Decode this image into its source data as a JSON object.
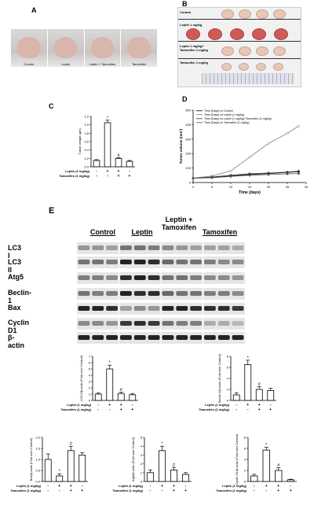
{
  "panels": {
    "A": "A",
    "B": "B",
    "C": "C",
    "D": "D",
    "E": "E"
  },
  "panel_a": {
    "captions": [
      "Control",
      "Leptin",
      "Leptin + Tamoxifen",
      "Tamoxifen"
    ]
  },
  "panel_b": {
    "rows": [
      "Control",
      "Leptin 1 mg/kg",
      "Leptin 1 mg/kg+ Tamoxifen 1 mg/kg",
      "Tamoxifen 1 mg/kg"
    ]
  },
  "treatment_labels": {
    "leptin": "Leptin (1 mg/kg)",
    "tamoxifen": "Tamoxifen (1 mg/kg)"
  },
  "treatment_signs": {
    "leptin": [
      "-",
      "+",
      "+",
      "-"
    ],
    "tamoxifen": [
      "-",
      "-",
      "+",
      "+"
    ]
  },
  "panel_e": {
    "groups": [
      "Control",
      "Leptin",
      "Leptin + Tamoxifen",
      "Tamoxifen"
    ],
    "rows": [
      "LC3 I",
      "LC3 II",
      "Atg5",
      "Beclin-1",
      "Bax",
      "Cyclin D1",
      "β-actin"
    ]
  },
  "chart_data": [
    {
      "type": "bar",
      "ylabel": "Tumor weight (gm)",
      "categories": [
        "1",
        "2",
        "3",
        "4"
      ],
      "values": [
        0.15,
        1.05,
        0.2,
        0.13
      ],
      "errors": [
        0.02,
        0.06,
        0.02,
        0.02
      ],
      "ylim": [
        0,
        1.2
      ],
      "yticks": [
        "0.0",
        "0.2",
        "0.4",
        "0.6",
        "0.8",
        "1.0",
        "1.2"
      ],
      "markers": [
        "",
        "*",
        "#",
        ""
      ]
    },
    {
      "type": "line",
      "xlabel": "Time (days)",
      "ylabel": "Tumor volume (mm³)",
      "x": [
        0,
        5,
        10,
        15,
        20,
        25,
        28
      ],
      "xticks": [
        "0",
        "5",
        "10",
        "15",
        "20",
        "25",
        "30"
      ],
      "yticks": [
        "0",
        "100",
        "200",
        "300",
        "400",
        "500"
      ],
      "ylim": [
        0,
        500
      ],
      "legend": [
        "Time (Days) vs Control",
        "Time (Days) vs Leptin (1 mg/kg)",
        "Time (Days) vs Leptin (1 mg/kg)+Tamoxifen (1 mg/kg)",
        "Time (Days) vs Tamoxifen (1 mg/kg)"
      ],
      "series": [
        {
          "values": [
            30,
            35,
            45,
            55,
            62,
            70,
            75
          ]
        },
        {
          "values": [
            30,
            45,
            80,
            175,
            270,
            340,
            390
          ]
        },
        {
          "values": [
            30,
            38,
            50,
            60,
            65,
            72,
            78
          ]
        },
        {
          "values": [
            30,
            33,
            42,
            50,
            55,
            60,
            62
          ]
        }
      ]
    },
    {
      "type": "bar",
      "ylabel": "LC3-II/β-actin (Fold over Control)",
      "categories": [
        "1",
        "2",
        "3",
        "4"
      ],
      "values": [
        1.0,
        5.0,
        1.1,
        0.9
      ],
      "errors": [
        0.2,
        0.6,
        0.2,
        0.2
      ],
      "ylim": [
        0,
        7
      ],
      "yticks": [
        "0",
        "1",
        "2",
        "3",
        "4",
        "5",
        "6",
        "7"
      ],
      "markers": [
        "",
        "*",
        "#",
        ""
      ]
    },
    {
      "type": "bar",
      "ylabel": "Beclin-1/β-actin (Fold over Control)",
      "categories": [
        "1",
        "2",
        "3",
        "4"
      ],
      "values": [
        1.0,
        6.5,
        2.0,
        1.8
      ],
      "errors": [
        0.4,
        0.8,
        0.5,
        0.4
      ],
      "ylim": [
        0,
        8
      ],
      "yticks": [
        "0",
        "2",
        "4",
        "6",
        "8"
      ],
      "markers": [
        "",
        "*",
        "#",
        ""
      ]
    },
    {
      "type": "bar",
      "ylabel": "Bax/β-actin (Fold over Control)",
      "categories": [
        "1",
        "2",
        "3",
        "4"
      ],
      "values": [
        1.0,
        0.25,
        1.4,
        1.2
      ],
      "errors": [
        0.25,
        0.1,
        0.2,
        0.1
      ],
      "ylim": [
        0,
        2
      ],
      "yticks": [
        "0.0",
        "0.5",
        "1.0",
        "1.5",
        "2.0"
      ],
      "markers": [
        "",
        "*",
        "#",
        ""
      ]
    },
    {
      "type": "bar",
      "ylabel": "Atg5/β-actin (Fold over Control)",
      "categories": [
        "1",
        "2",
        "3",
        "4"
      ],
      "values": [
        1.0,
        3.5,
        1.3,
        0.8
      ],
      "errors": [
        0.3,
        0.5,
        0.3,
        0.2
      ],
      "ylim": [
        0,
        5
      ],
      "yticks": [
        "0",
        "1",
        "2",
        "3",
        "4",
        "5"
      ],
      "markers": [
        "",
        "*",
        "#",
        ""
      ]
    },
    {
      "type": "bar",
      "ylabel": "Cyclin D1/β-actin (Fold over Control)",
      "categories": [
        "1",
        "2",
        "3",
        "4"
      ],
      "values": [
        1.0,
        5.7,
        2.0,
        0.3
      ],
      "errors": [
        0.3,
        0.5,
        0.5,
        0.1
      ],
      "ylim": [
        0,
        8
      ],
      "yticks": [
        "0",
        "2",
        "4",
        "6",
        "8"
      ],
      "markers": [
        "",
        "*",
        "#",
        ""
      ]
    }
  ]
}
